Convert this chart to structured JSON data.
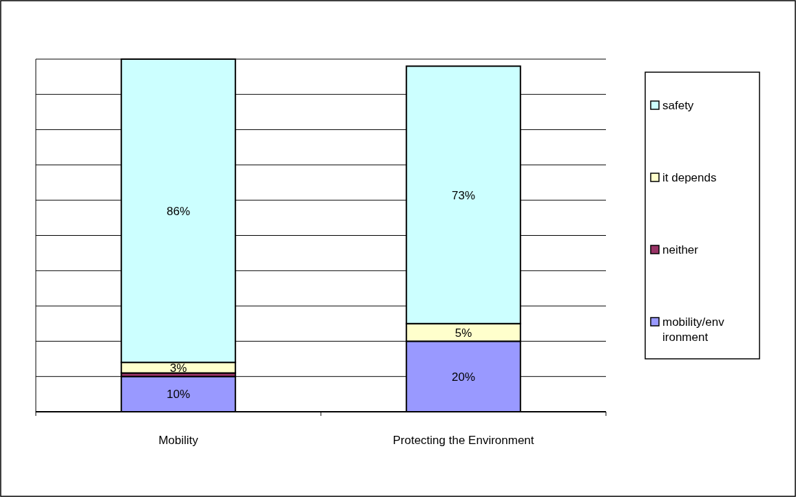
{
  "chart_data": {
    "type": "bar",
    "stacked": true,
    "categories": [
      "Mobility",
      "Protecting the Environment"
    ],
    "series": [
      {
        "name": "mobility/environment",
        "color": "#9999ff",
        "values": [
          10,
          20
        ],
        "value_labels": [
          "10%",
          "20%"
        ]
      },
      {
        "name": "neither",
        "color": "#993366",
        "values": [
          1,
          0
        ],
        "value_labels": [
          null,
          null
        ]
      },
      {
        "name": "it depends",
        "color": "#ffffcc",
        "values": [
          3,
          5
        ],
        "value_labels": [
          "3%",
          "5%"
        ]
      },
      {
        "name": "safety",
        "color": "#ccffff",
        "values": [
          86,
          73
        ],
        "value_labels": [
          "86%",
          "73%"
        ]
      }
    ],
    "ylim": [
      0,
      100
    ],
    "yticks": [
      {
        "value": 0,
        "label": null
      },
      {
        "value": 10,
        "label": null
      },
      {
        "value": 20,
        "label": null
      },
      {
        "value": 30,
        "label": null
      },
      {
        "value": 40,
        "label": null
      },
      {
        "value": 50,
        "label": null
      },
      {
        "value": 60,
        "label": null
      },
      {
        "value": 70,
        "label": null
      },
      {
        "value": 80,
        "label": null
      },
      {
        "value": 90,
        "label": null
      },
      {
        "value": 100,
        "label": null
      }
    ],
    "grid": "y",
    "tick_labels": "x",
    "legend": "right"
  }
}
